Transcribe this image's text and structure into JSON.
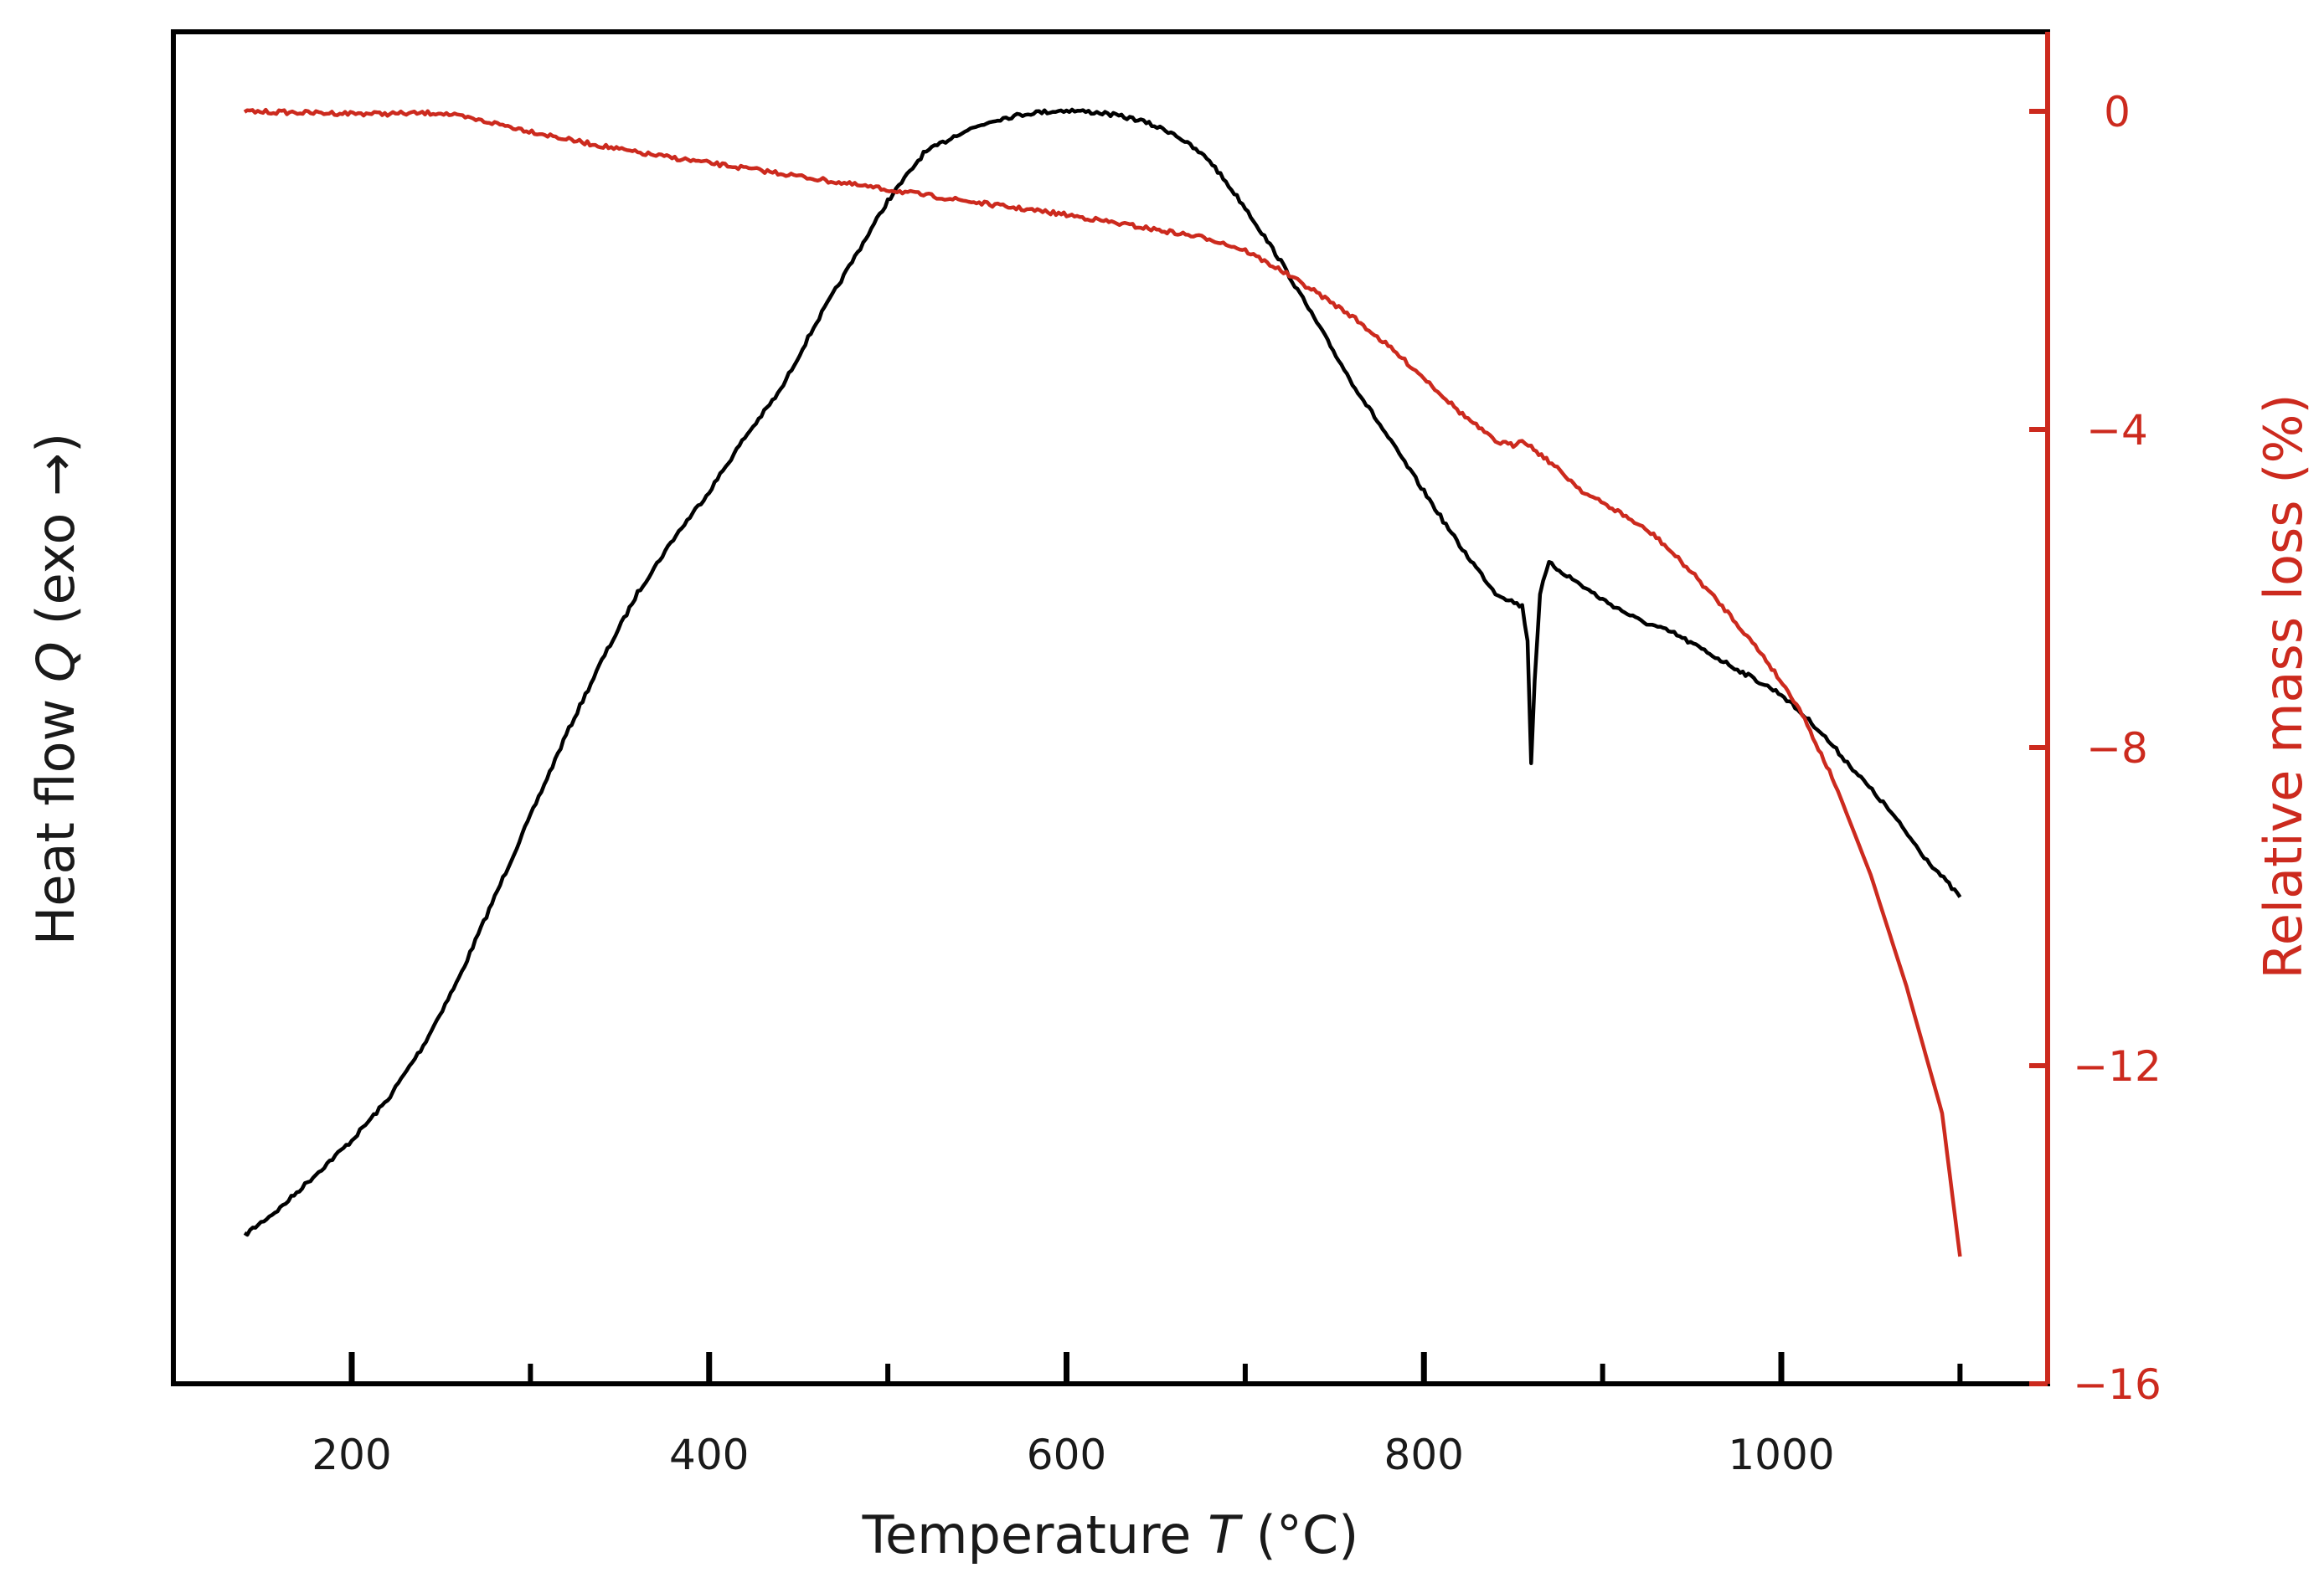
{
  "chart_data": {
    "type": "line",
    "title": "",
    "xlabel": {
      "prefix": "Temperature ",
      "var": "T",
      "suffix": " (°C)"
    },
    "ylabel_left": {
      "prefix": "Heat flow ",
      "var": "Q",
      "suffix": " (exo →)"
    },
    "ylabel_right": "Relative mass loss (%)",
    "xlim": [
      100,
      1150
    ],
    "x_ticks": [
      200,
      400,
      600,
      800,
      1000
    ],
    "x_tick_labels": [
      "200",
      "400",
      "600",
      "800",
      "1000"
    ],
    "x_minor_ticks": [
      300,
      500,
      700,
      900,
      1100
    ],
    "y_right_lim": [
      -16,
      1
    ],
    "y_right_ticks": [
      0,
      -4,
      -8,
      -12,
      -16
    ],
    "y_right_tick_labels": [
      "0",
      "−4",
      "−8",
      "−12",
      "−16"
    ],
    "y_left_lim": [
      0,
      1
    ],
    "grid": false,
    "series": [
      {
        "name": "Heat flow",
        "axis": "left",
        "color": "#000000",
        "x": [
          140,
          160,
          180,
          200,
          220,
          240,
          260,
          280,
          300,
          320,
          340,
          360,
          380,
          400,
          420,
          440,
          460,
          480,
          500,
          520,
          540,
          560,
          580,
          600,
          620,
          640,
          660,
          680,
          700,
          720,
          740,
          760,
          780,
          800,
          820,
          840,
          855,
          858,
          860,
          862,
          865,
          870,
          880,
          900,
          920,
          940,
          960,
          980,
          1000,
          1020,
          1040,
          1060,
          1080,
          1100
        ],
        "values": [
          0.11,
          0.13,
          0.155,
          0.18,
          0.21,
          0.25,
          0.3,
          0.36,
          0.42,
          0.48,
          0.535,
          0.585,
          0.625,
          0.66,
          0.7,
          0.735,
          0.785,
          0.83,
          0.875,
          0.91,
          0.925,
          0.935,
          0.94,
          0.942,
          0.94,
          0.935,
          0.925,
          0.905,
          0.87,
          0.83,
          0.785,
          0.74,
          0.7,
          0.66,
          0.62,
          0.585,
          0.575,
          0.55,
          0.46,
          0.52,
          0.585,
          0.607,
          0.598,
          0.58,
          0.565,
          0.555,
          0.54,
          0.525,
          0.51,
          0.485,
          0.455,
          0.425,
          0.39,
          0.36
        ]
      },
      {
        "name": "Relative mass loss",
        "axis": "right",
        "color": "#cc2a1e",
        "x": [
          140,
          180,
          220,
          250,
          280,
          320,
          360,
          400,
          440,
          480,
          520,
          560,
          600,
          640,
          680,
          700,
          720,
          740,
          760,
          780,
          800,
          820,
          840,
          850,
          855,
          860,
          870,
          890,
          910,
          930,
          950,
          970,
          990,
          1010,
          1030,
          1050,
          1070,
          1090,
          1100
        ],
        "values": [
          0,
          -0.02,
          -0.03,
          -0.02,
          -0.15,
          -0.35,
          -0.52,
          -0.65,
          -0.78,
          -0.92,
          -1.05,
          -1.18,
          -1.3,
          -1.45,
          -1.6,
          -1.75,
          -2.0,
          -2.28,
          -2.58,
          -2.95,
          -3.35,
          -3.78,
          -4.15,
          -4.2,
          -4.12,
          -4.22,
          -4.4,
          -4.8,
          -5.05,
          -5.35,
          -5.8,
          -6.3,
          -6.85,
          -7.5,
          -8.45,
          -9.6,
          -11.0,
          -12.6,
          -14.4
        ]
      }
    ]
  }
}
